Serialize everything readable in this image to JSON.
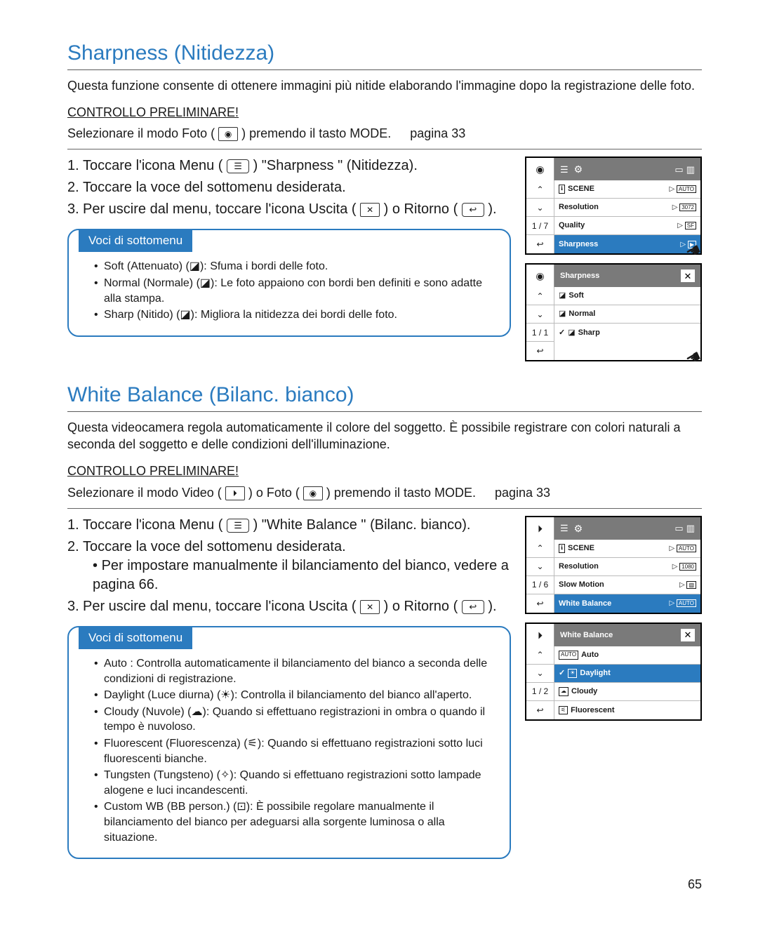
{
  "page_number": "65",
  "sharpness": {
    "title": "Sharpness (Nitidezza)",
    "intro": "Questa funzione consente di ottenere immagini più nitide elaborando l'immagine dopo la registrazione delle foto.",
    "prelim_label": "CONTROLLO PRELIMINARE!",
    "prelim_text_a": "Selezionare il modo Foto (",
    "prelim_text_b": ") premendo il tasto MODE.",
    "page_ref": "pagina 33",
    "steps": [
      {
        "a": "Toccare l'icona Menu (",
        "b": ")   \"Sharpness \" (Nitidezza)."
      },
      {
        "text": "Toccare la voce del sottomenu desiderata."
      },
      {
        "a": "Per uscire dal menu, toccare l'icona Uscita (",
        "b": ") o Ritorno (",
        "c": ")."
      }
    ],
    "submenu_title": "Voci di sottomenu",
    "submenu": [
      {
        "a": "Soft (Attenuato) (",
        "b": "): Sfuma i bordi delle foto."
      },
      {
        "a": "Normal (Normale) (",
        "b": "): Le foto appaiono con bordi ben definiti e sono adatte alla stampa."
      },
      {
        "a": "Sharp (Nitido) (",
        "b": "): Migliora la nitidezza dei bordi delle foto."
      }
    ],
    "screen1": {
      "counter": "1 / 7",
      "rows": [
        {
          "icon": "ℹ",
          "label": "SCENE",
          "val": "AUTO"
        },
        {
          "label": "Resolution",
          "val": "3072"
        },
        {
          "label": "Quality",
          "val": "SF"
        },
        {
          "label": "Sharpness",
          "sel": true,
          "val": "▶"
        }
      ]
    },
    "screen2": {
      "title": "Sharpness",
      "counter": "1 / 1",
      "rows": [
        {
          "label": "Soft"
        },
        {
          "label": "Normal"
        },
        {
          "label": "Sharp",
          "chk": true
        }
      ]
    }
  },
  "wb": {
    "title": "White Balance (Bilanc. bianco)",
    "intro": "Questa videocamera regola automaticamente il colore del soggetto. È possibile registrare con colori naturali a seconda del soggetto e delle condizioni dell'illuminazione.",
    "prelim_label": "CONTROLLO PRELIMINARE!",
    "prelim_text_a": "Selezionare il modo Video (",
    "prelim_text_mid": ") o Foto (",
    "prelim_text_b": ") premendo il tasto MODE.",
    "page_ref": "pagina 33",
    "steps": [
      {
        "a": "Toccare l'icona Menu (",
        "b": ")   \"White Balance \" (Bilanc. bianco)."
      },
      {
        "text": "Toccare la voce del sottomenu desiderata.",
        "sub": "Per impostare manualmente il bilanciamento del bianco, vedere a pagina 66."
      },
      {
        "a": "Per uscire dal menu, toccare l'icona Uscita (",
        "b": ") o Ritorno (",
        "c": ")."
      }
    ],
    "submenu_title": "Voci di sottomenu",
    "submenu": [
      {
        "a": "Auto : Controlla automaticamente il bilanciamento del bianco a seconda delle condizioni di registrazione."
      },
      {
        "a": "Daylight (Luce diurna) (",
        "b": "): Controlla il bilanciamento del bianco all'aperto.",
        "icon": "☀"
      },
      {
        "a": "Cloudy (Nuvole)  (",
        "b": "): Quando si effettuano registrazioni in ombra o quando il tempo è nuvoloso.",
        "icon": "☁"
      },
      {
        "a": "Fluorescent (Fluorescenza) (",
        "b": "): Quando si effettuano registrazioni sotto luci fluorescenti bianche.",
        "icon": "⚟"
      },
      {
        "a": "Tungsten (Tungsteno) (",
        "b": "): Quando si effettuano registrazioni sotto lampade alogene e luci incandescenti.",
        "icon": "✧"
      },
      {
        "a": "Custom WB (BB person.) (",
        "b": "): È possibile regolare manualmente il bilanciamento del bianco per adeguarsi alla sorgente luminosa o alla situazione.",
        "icon": "⊡"
      }
    ],
    "screen1": {
      "counter": "1 / 6",
      "rows": [
        {
          "icon": "ℹ",
          "label": "SCENE",
          "val": "AUTO"
        },
        {
          "label": "Resolution",
          "val": "1080"
        },
        {
          "label": "Slow Motion",
          "val": "▧"
        },
        {
          "label": "White Balance",
          "sel": true,
          "val": "AUTO"
        }
      ]
    },
    "screen2": {
      "title": "White Balance",
      "counter": "1 / 2",
      "rows": [
        {
          "icon": "AUTO",
          "label": "Auto"
        },
        {
          "icon": "☀",
          "label": "Daylight",
          "sel": true,
          "chk": true
        },
        {
          "icon": "☁",
          "label": "Cloudy"
        },
        {
          "icon": "⚟",
          "label": "Fluorescent"
        }
      ]
    }
  }
}
